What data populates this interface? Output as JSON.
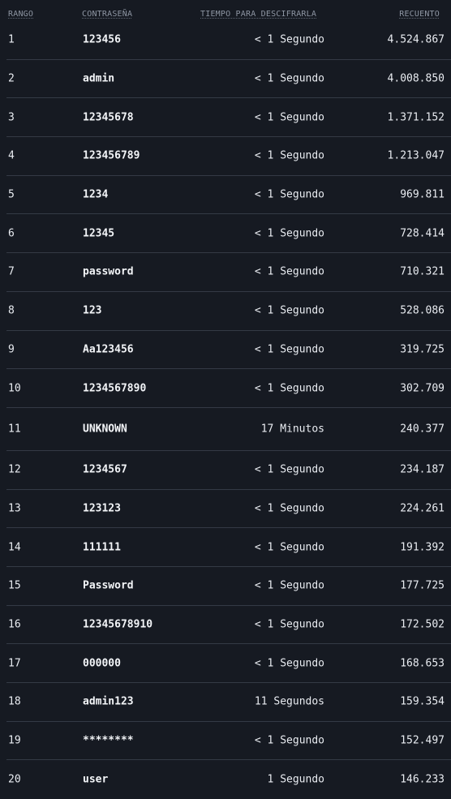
{
  "headers": {
    "rank": "RANGO",
    "password": "CONTRASEÑA",
    "time": "TIEMPO PARA DESCIFRARLA",
    "count": "RECUENTO"
  },
  "rows": [
    {
      "rank": "1",
      "password": "123456",
      "time": "< 1 Segundo",
      "count": "4.524.867"
    },
    {
      "rank": "2",
      "password": "admin",
      "time": "< 1 Segundo",
      "count": "4.008.850"
    },
    {
      "rank": "3",
      "password": "12345678",
      "time": "< 1 Segundo",
      "count": "1.371.152"
    },
    {
      "rank": "4",
      "password": "123456789",
      "time": "< 1 Segundo",
      "count": "1.213.047"
    },
    {
      "rank": "5",
      "password": "1234",
      "time": "< 1 Segundo",
      "count": "969.811"
    },
    {
      "rank": "6",
      "password": "12345",
      "time": "< 1 Segundo",
      "count": "728.414"
    },
    {
      "rank": "7",
      "password": "password",
      "time": "< 1 Segundo",
      "count": "710.321"
    },
    {
      "rank": "8",
      "password": "123",
      "time": "< 1 Segundo",
      "count": "528.086"
    },
    {
      "rank": "9",
      "password": "Aa123456",
      "time": "< 1 Segundo",
      "count": "319.725"
    },
    {
      "rank": "10",
      "password": "1234567890",
      "time": "< 1 Segundo",
      "count": "302.709"
    },
    {
      "rank": "11",
      "password": "UNKNOWN",
      "time": "17 Minutos",
      "count": "240.377"
    },
    {
      "rank": "12",
      "password": "1234567",
      "time": "< 1 Segundo",
      "count": "234.187"
    },
    {
      "rank": "13",
      "password": "123123",
      "time": "< 1 Segundo",
      "count": "224.261"
    },
    {
      "rank": "14",
      "password": "111111",
      "time": "< 1 Segundo",
      "count": "191.392"
    },
    {
      "rank": "15",
      "password": "Password",
      "time": "< 1 Segundo",
      "count": "177.725"
    },
    {
      "rank": "16",
      "password": "12345678910",
      "time": "< 1 Segundo",
      "count": "172.502"
    },
    {
      "rank": "17",
      "password": "000000",
      "time": "< 1 Segundo",
      "count": "168.653"
    },
    {
      "rank": "18",
      "password": "admin123",
      "time": "11 Segundos",
      "count": "159.354"
    },
    {
      "rank": "19",
      "password": "********",
      "time": "< 1 Segundo",
      "count": "152.497"
    },
    {
      "rank": "20",
      "password": "user",
      "time": "1 Segundo",
      "count": "146.233"
    }
  ],
  "colors": {
    "background": "#161a22",
    "text": "#e9ecf1",
    "header_text": "#8e96a3",
    "divider": "#343a45"
  }
}
